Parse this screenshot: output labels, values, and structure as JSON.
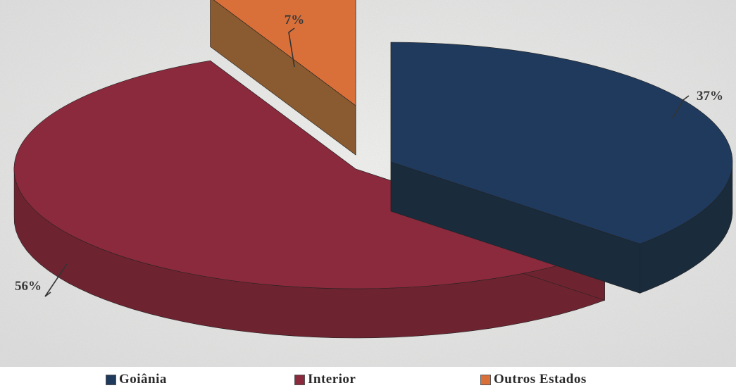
{
  "chart_data": {
    "type": "pie",
    "title": "",
    "categories": [
      "Goiânia",
      "Interior",
      "Outros Estados"
    ],
    "values": [
      37,
      56,
      7
    ],
    "data_labels": [
      "37%",
      "56%",
      "7%"
    ],
    "legend_position": "bottom",
    "colors": [
      "#1f3a5c",
      "#8a2a3c",
      "#d9703a"
    ],
    "side_colors": [
      "#1a2b3c",
      "#6e2430",
      "#8a5a30"
    ]
  }
}
